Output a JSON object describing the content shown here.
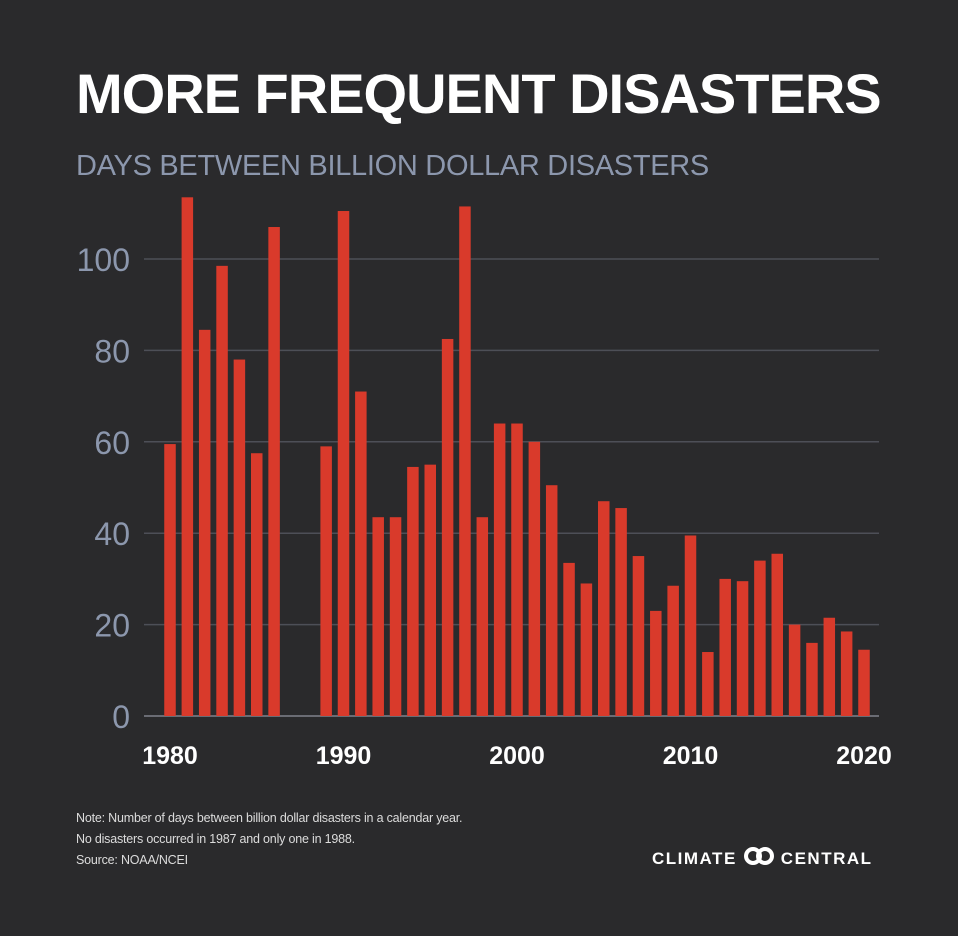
{
  "header": {
    "title": "MORE FREQUENT DISASTERS",
    "subtitle": "DAYS BETWEEN BILLION DOLLAR DISASTERS"
  },
  "notes": {
    "line1": "Note: Number of days between billion dollar disasters in a calendar year.",
    "line2": "No disasters occurred in 1987 and only one in 1988.",
    "source": "Source:  NOAA/NCEI"
  },
  "brand": {
    "left": "CLIMATE",
    "right": "CENTRAL",
    "logo_icon": "climate-central-logo-icon"
  },
  "colors": {
    "background": "#2a2a2c",
    "bar": "#d93a2b",
    "grid": "#4d4f57",
    "tick_label": "#8c97ad",
    "x_label": "#ffffff"
  },
  "chart_data": {
    "type": "bar",
    "title": "MORE FREQUENT DISASTERS",
    "subtitle": "DAYS BETWEEN BILLION DOLLAR DISASTERS",
    "xlabel": "",
    "ylabel": "",
    "ylim": [
      0,
      115
    ],
    "yticks": [
      0,
      20,
      40,
      60,
      80,
      100
    ],
    "xticks": [
      1980,
      1990,
      2000,
      2010,
      2020
    ],
    "grid": true,
    "categories": [
      1980,
      1981,
      1982,
      1983,
      1984,
      1985,
      1986,
      1987,
      1988,
      1989,
      1990,
      1991,
      1992,
      1993,
      1994,
      1995,
      1996,
      1997,
      1998,
      1999,
      2000,
      2001,
      2002,
      2003,
      2004,
      2005,
      2006,
      2007,
      2008,
      2009,
      2010,
      2011,
      2012,
      2013,
      2014,
      2015,
      2016,
      2017,
      2018,
      2019,
      2020
    ],
    "values": [
      59.5,
      113.5,
      84.5,
      98.5,
      78,
      57.5,
      107,
      null,
      null,
      59,
      110.5,
      71,
      43.5,
      43.5,
      54.5,
      55,
      82.5,
      111.5,
      43.5,
      64,
      64,
      60,
      50.5,
      33.5,
      29,
      47,
      45.5,
      35,
      23,
      28.5,
      39.5,
      14,
      30,
      29.5,
      34,
      35.5,
      20,
      16,
      21.5,
      18.5,
      14.5
    ]
  }
}
